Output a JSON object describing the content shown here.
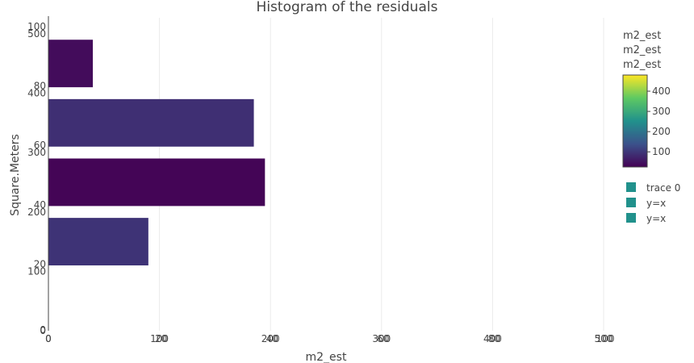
{
  "chart_data": {
    "type": "bar",
    "orientation": "horizontal",
    "title": "Histogram of the residuals",
    "xlabel": "m2_est",
    "ylabel": "Square.Meters",
    "grid": true,
    "x_ticks_primary": [
      "0",
      "100",
      "200",
      "300",
      "400",
      "500"
    ],
    "x_ticks_secondary": [
      "0",
      "20",
      "40",
      "60",
      "80",
      "100"
    ],
    "y_ticks_primary": [
      "0",
      "100",
      "200",
      "300",
      "400",
      "500"
    ],
    "y_ticks_secondary": [
      "0",
      "20",
      "40",
      "60",
      "80",
      "100"
    ],
    "xlim": [
      0,
      500
    ],
    "ylim": [
      0,
      527
    ],
    "bars": [
      {
        "y_center": 450,
        "y_width": 80,
        "value": 40,
        "color_value": 40
      },
      {
        "y_center": 350,
        "y_width": 80,
        "value": 185,
        "color_value": 90
      },
      {
        "y_center": 250,
        "y_width": 80,
        "value": 195,
        "color_value": 30
      },
      {
        "y_center": 150,
        "y_width": 80,
        "value": 90,
        "color_value": 95
      }
    ],
    "colorscale": "viridis",
    "colorbar": {
      "titles": [
        "m2_est",
        "m2_est",
        "m2_est"
      ],
      "range": [
        25,
        480
      ],
      "ticks": [
        "100",
        "200",
        "300",
        "400"
      ],
      "tick_values": [
        100,
        200,
        300,
        400
      ]
    },
    "legend": {
      "placement": "right",
      "entries": [
        "trace 0",
        "y=x",
        "y=x"
      ],
      "color": "#21918c"
    }
  }
}
